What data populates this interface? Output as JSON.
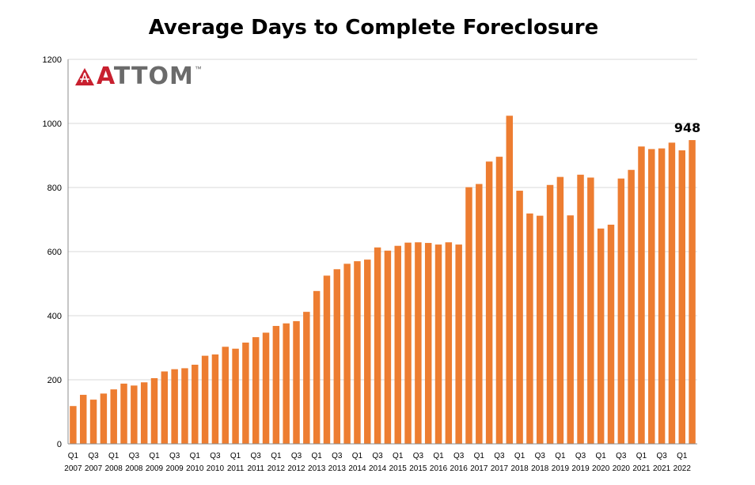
{
  "title": "Average Days to Complete Foreclosure",
  "logo": {
    "brand_initial": "A",
    "brand_rest": "TTOM",
    "tm": "™"
  },
  "colors": {
    "bar": "#ED7D31",
    "grid": "#d9d9d9",
    "axis": "#8c8c8c",
    "logo_accent": "#c8202f"
  },
  "chart_data": {
    "type": "bar",
    "title": "Average Days to Complete Foreclosure",
    "xlabel": "",
    "ylabel": "",
    "ylim": [
      0,
      1200
    ],
    "yticks": [
      0,
      200,
      400,
      600,
      800,
      1000,
      1200
    ],
    "grid": true,
    "categories": [
      "Q1 2007",
      "Q2 2007",
      "Q3 2007",
      "Q4 2007",
      "Q1 2008",
      "Q2 2008",
      "Q3 2008",
      "Q4 2008",
      "Q1 2009",
      "Q2 2009",
      "Q3 2009",
      "Q4 2009",
      "Q1 2010",
      "Q2 2010",
      "Q3 2010",
      "Q4 2010",
      "Q1 2011",
      "Q2 2011",
      "Q3 2011",
      "Q4 2011",
      "Q1 2012",
      "Q2 2012",
      "Q3 2012",
      "Q4 2012",
      "Q1 2013",
      "Q2 2013",
      "Q3 2013",
      "Q4 2013",
      "Q1 2014",
      "Q2 2014",
      "Q3 2014",
      "Q4 2014",
      "Q1 2015",
      "Q2 2015",
      "Q3 2015",
      "Q4 2015",
      "Q1 2016",
      "Q2 2016",
      "Q3 2016",
      "Q4 2016",
      "Q1 2017",
      "Q2 2017",
      "Q3 2017",
      "Q4 2017",
      "Q1 2018",
      "Q2 2018",
      "Q3 2018",
      "Q4 2018",
      "Q1 2019",
      "Q2 2019",
      "Q3 2019",
      "Q4 2019",
      "Q1 2020",
      "Q2 2020",
      "Q3 2020",
      "Q4 2020",
      "Q1 2021",
      "Q2 2021",
      "Q3 2021",
      "Q4 2021",
      "Q1 2022",
      "Q2 2022"
    ],
    "values": [
      118,
      153,
      138,
      157,
      170,
      188,
      182,
      192,
      205,
      226,
      233,
      236,
      247,
      275,
      279,
      303,
      297,
      316,
      333,
      347,
      368,
      376,
      383,
      412,
      477,
      525,
      545,
      562,
      570,
      575,
      613,
      603,
      618,
      628,
      629,
      627,
      622,
      629,
      622,
      801,
      811,
      881,
      896,
      1024,
      790,
      719,
      712,
      808,
      833,
      713,
      840,
      831,
      672,
      684,
      828,
      855,
      928,
      920,
      922,
      940,
      916,
      948
    ],
    "x_tick_labels": [
      {
        "index": 0,
        "quarter": "Q1",
        "year": "2007"
      },
      {
        "index": 2,
        "quarter": "Q3",
        "year": "2007"
      },
      {
        "index": 4,
        "quarter": "Q1",
        "year": "2008"
      },
      {
        "index": 6,
        "quarter": "Q3",
        "year": "2008"
      },
      {
        "index": 8,
        "quarter": "Q1",
        "year": "2009"
      },
      {
        "index": 10,
        "quarter": "Q3",
        "year": "2009"
      },
      {
        "index": 12,
        "quarter": "Q1",
        "year": "2010"
      },
      {
        "index": 14,
        "quarter": "Q3",
        "year": "2010"
      },
      {
        "index": 16,
        "quarter": "Q1",
        "year": "2011"
      },
      {
        "index": 18,
        "quarter": "Q3",
        "year": "2011"
      },
      {
        "index": 20,
        "quarter": "Q1",
        "year": "2012"
      },
      {
        "index": 22,
        "quarter": "Q3",
        "year": "2012"
      },
      {
        "index": 24,
        "quarter": "Q1",
        "year": "2013"
      },
      {
        "index": 26,
        "quarter": "Q3",
        "year": "2013"
      },
      {
        "index": 28,
        "quarter": "Q1",
        "year": "2014"
      },
      {
        "index": 30,
        "quarter": "Q3",
        "year": "2014"
      },
      {
        "index": 32,
        "quarter": "Q1",
        "year": "2015"
      },
      {
        "index": 34,
        "quarter": "Q3",
        "year": "2015"
      },
      {
        "index": 36,
        "quarter": "Q1",
        "year": "2016"
      },
      {
        "index": 38,
        "quarter": "Q3",
        "year": "2016"
      },
      {
        "index": 40,
        "quarter": "Q1",
        "year": "2017"
      },
      {
        "index": 42,
        "quarter": "Q3",
        "year": "2017"
      },
      {
        "index": 44,
        "quarter": "Q1",
        "year": "2018"
      },
      {
        "index": 46,
        "quarter": "Q3",
        "year": "2018"
      },
      {
        "index": 48,
        "quarter": "Q1",
        "year": "2019"
      },
      {
        "index": 50,
        "quarter": "Q3",
        "year": "2019"
      },
      {
        "index": 52,
        "quarter": "Q1",
        "year": "2020"
      },
      {
        "index": 54,
        "quarter": "Q3",
        "year": "2020"
      },
      {
        "index": 56,
        "quarter": "Q1",
        "year": "2021"
      },
      {
        "index": 58,
        "quarter": "Q3",
        "year": "2021"
      },
      {
        "index": 60,
        "quarter": "Q1",
        "year": "2022"
      }
    ],
    "annotations": [
      {
        "index": 61,
        "text": "948"
      }
    ]
  }
}
